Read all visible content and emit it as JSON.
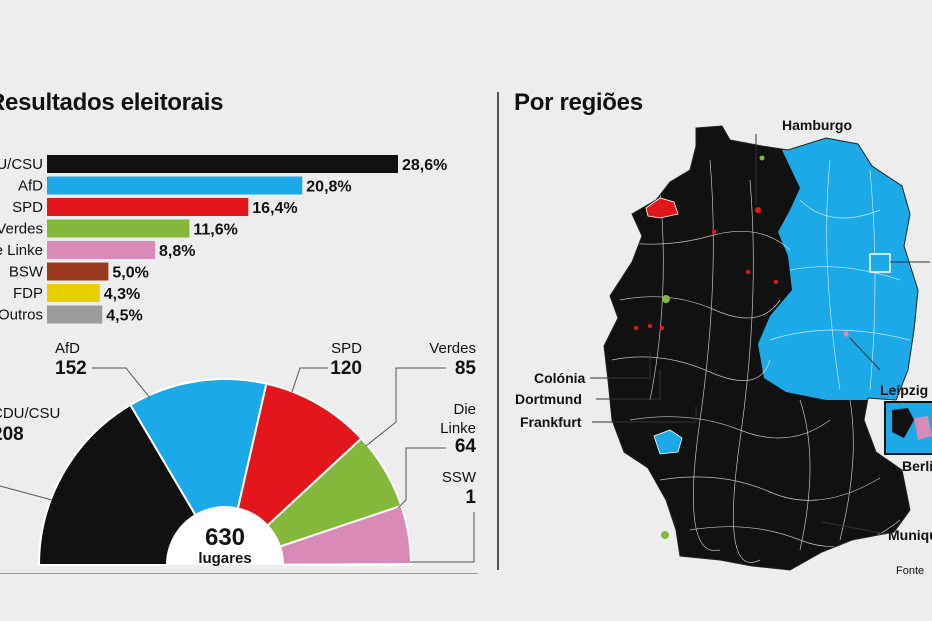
{
  "titles": {
    "left": "Resultados eleitorais",
    "right": "Por regiões"
  },
  "colors": {
    "cducsu": "#111111",
    "afd": "#1ba9e8",
    "spd": "#e3171b",
    "verdes": "#84b83a",
    "linke": "#d98ab6",
    "bsw": "#9c3a1f",
    "fdp": "#e7cf00",
    "outros": "#9c9c9c",
    "ssw": "#1f4fa3",
    "background": "#ecedec",
    "map_border": "#ffffff"
  },
  "chart_data": [
    {
      "type": "bar",
      "orientation": "horizontal",
      "categories": [
        "CDU/CSU",
        "AfD",
        "SPD",
        "Verdes",
        "Die Linke",
        "BSW",
        "FDP",
        "Outros"
      ],
      "values": [
        28.6,
        20.8,
        16.4,
        11.6,
        8.8,
        5.0,
        4.3,
        4.5
      ],
      "value_labels": [
        "28,6%",
        "20,8%",
        "16,4%",
        "11,6%",
        "8,8%",
        "5,0%",
        "4,3%",
        "4,5%"
      ],
      "color_keys": [
        "cducsu",
        "afd",
        "spd",
        "verdes",
        "linke",
        "bsw",
        "fdp",
        "outros"
      ],
      "xlim": [
        0,
        28.6
      ]
    },
    {
      "type": "pie",
      "style": "semicircle-parliament",
      "categories": [
        "CDU/CSU",
        "AfD",
        "SPD",
        "Verdes",
        "Die Linke",
        "SSW"
      ],
      "values": [
        208,
        152,
        120,
        85,
        64,
        1
      ],
      "value_labels": [
        "208",
        "152",
        "120",
        "85",
        "64",
        "1"
      ],
      "color_keys": [
        "cducsu",
        "afd",
        "spd",
        "verdes",
        "linke",
        "ssw"
      ],
      "center_total": "630",
      "center_label": "lugares"
    }
  ],
  "map": {
    "city_labels": [
      "Hamburgo",
      "Colónia",
      "Dortmund",
      "Frankfurt",
      "Leipzig",
      "Berlim",
      "Munique"
    ],
    "source_label": "Fonte"
  }
}
